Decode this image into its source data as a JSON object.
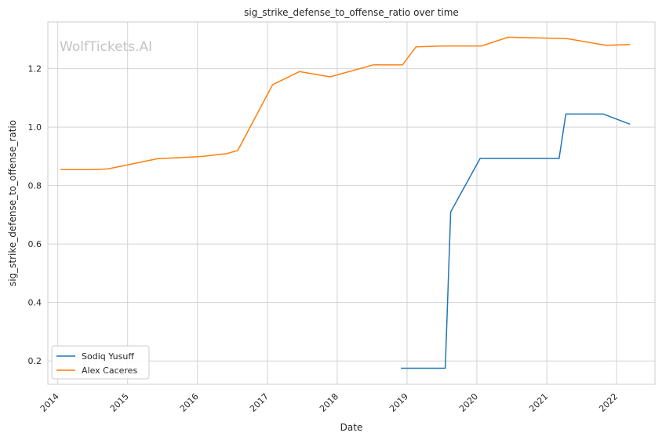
{
  "chart_data": {
    "type": "line",
    "title": "sig_strike_defense_to_offense_ratio over time",
    "xlabel": "Date",
    "ylabel": "sig_strike_defense_to_offense_ratio",
    "watermark": "WolfTickets.AI",
    "grid": true,
    "legend_position": "lower-left",
    "x_tick_labels": [
      "2014",
      "2015",
      "2016",
      "2017",
      "2018",
      "2019",
      "2020",
      "2021",
      "2022"
    ],
    "y_tick_labels": [
      "0.2",
      "0.4",
      "0.6",
      "0.8",
      "1.0",
      "1.2"
    ],
    "ylim": [
      0.12,
      1.36
    ],
    "xlim": [
      "2013-11-10",
      "2022-07-20"
    ],
    "series": [
      {
        "name": "Sodiq Yusuff",
        "color": "#1f77b4",
        "points": [
          {
            "x": "2018-11-30",
            "y": 0.175
          },
          {
            "x": "2019-07-20",
            "y": 0.175
          },
          {
            "x": "2019-08-17",
            "y": 0.71
          },
          {
            "x": "2020-01-18",
            "y": 0.893
          },
          {
            "x": "2021-03-06",
            "y": 0.893
          },
          {
            "x": "2021-04-10",
            "y": 1.045
          },
          {
            "x": "2021-10-23",
            "y": 1.045
          },
          {
            "x": "2022-03-12",
            "y": 1.01
          }
        ]
      },
      {
        "name": "Alex Caceres",
        "color": "#ff7f0e",
        "points": [
          {
            "x": "2014-01-15",
            "y": 0.855
          },
          {
            "x": "2014-06-28",
            "y": 0.855
          },
          {
            "x": "2014-09-20",
            "y": 0.857
          },
          {
            "x": "2015-06-06",
            "y": 0.892
          },
          {
            "x": "2016-01-30",
            "y": 0.9
          },
          {
            "x": "2016-06-04",
            "y": 0.91
          },
          {
            "x": "2016-07-30",
            "y": 0.92
          },
          {
            "x": "2017-01-28",
            "y": 1.145
          },
          {
            "x": "2017-06-17",
            "y": 1.19
          },
          {
            "x": "2017-11-25",
            "y": 1.172
          },
          {
            "x": "2018-07-07",
            "y": 1.213
          },
          {
            "x": "2018-12-08",
            "y": 1.213
          },
          {
            "x": "2019-02-17",
            "y": 1.275
          },
          {
            "x": "2019-07-13",
            "y": 1.278
          },
          {
            "x": "2020-01-25",
            "y": 1.278
          },
          {
            "x": "2020-06-13",
            "y": 1.308
          },
          {
            "x": "2021-04-17",
            "y": 1.303
          },
          {
            "x": "2021-11-06",
            "y": 1.28
          },
          {
            "x": "2022-03-12",
            "y": 1.283
          }
        ]
      }
    ]
  }
}
